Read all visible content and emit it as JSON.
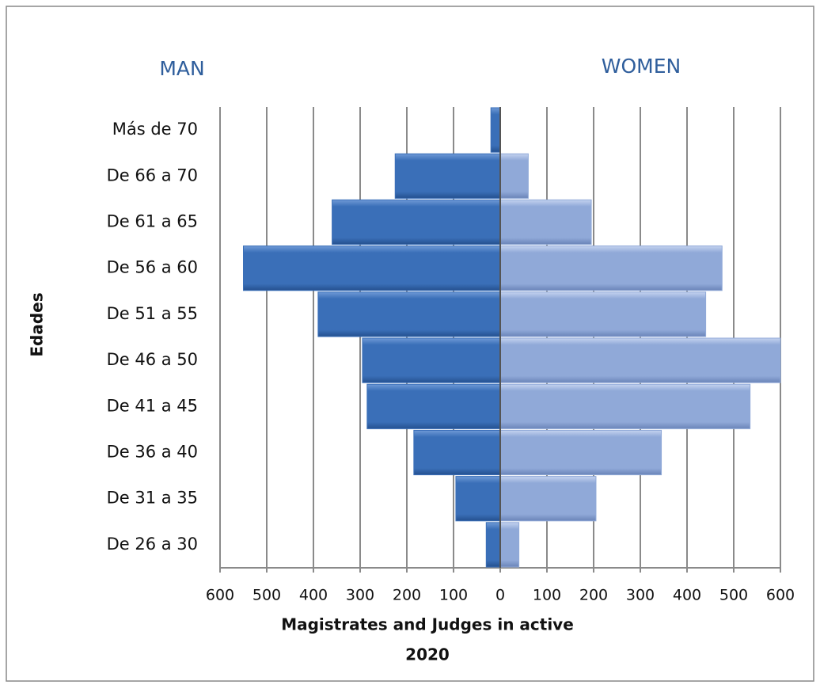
{
  "chart_data": {
    "type": "pyramid",
    "ylabel": "Edades",
    "xlabel": [
      "Magistrates and Judges in active",
      "2020"
    ],
    "categories": [
      "Más de 70",
      "De 66 a 70",
      "De 61 a 65",
      "De 56 a 60",
      "De 51 a 55",
      "De 46 a 50",
      "De 41 a 45",
      "De 36 a 40",
      "De 31 a 35",
      "De 26 a 30"
    ],
    "series": [
      {
        "name": "MAN",
        "color": "#3a6fb8",
        "values": [
          20,
          225,
          360,
          550,
          390,
          295,
          285,
          185,
          95,
          30
        ]
      },
      {
        "name": "WOMEN",
        "color": "#90a9d8",
        "values": [
          0,
          60,
          195,
          475,
          440,
          600,
          535,
          345,
          205,
          40
        ]
      }
    ],
    "xlim": [
      -600,
      600
    ],
    "xticks": [
      {
        "value": -600,
        "label": "600"
      },
      {
        "value": -500,
        "label": "500"
      },
      {
        "value": -400,
        "label": "400"
      },
      {
        "value": -300,
        "label": "300"
      },
      {
        "value": -200,
        "label": "200"
      },
      {
        "value": -100,
        "label": "100"
      },
      0,
      100,
      200,
      300,
      400,
      500,
      600
    ],
    "grid": true
  }
}
